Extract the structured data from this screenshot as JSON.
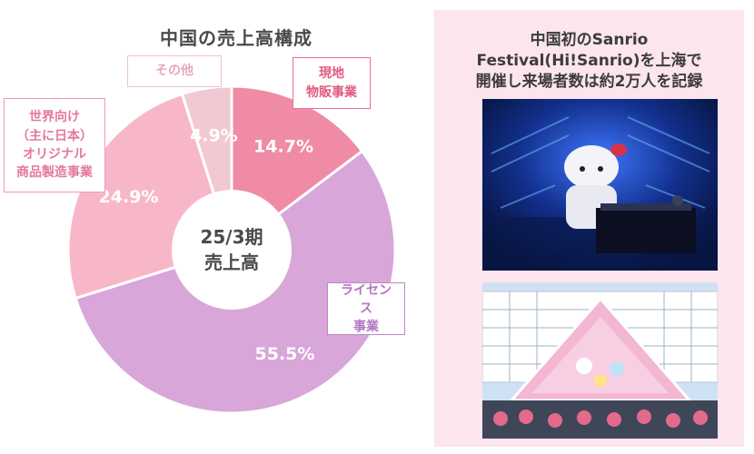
{
  "chart_data": {
    "type": "pie",
    "donut": true,
    "title": "中国の売上高構成",
    "center_label": [
      "25/3期",
      "売上高"
    ],
    "slices": [
      {
        "label": "現地物販事業",
        "label_lines": [
          "現地",
          "物販事業"
        ],
        "value": 14.7,
        "display": "14.7%",
        "color": "#f08ba5"
      },
      {
        "label": "ライセンス事業",
        "label_lines": [
          "ライセンス",
          "事業"
        ],
        "value": 55.5,
        "display": "55.5%",
        "color": "#d9a6d9"
      },
      {
        "label": "世界向け（主に日本）オリジナル商品製造事業",
        "label_lines": [
          "世界向け",
          "（主に日本）",
          "オリジナル",
          "商品製造事業"
        ],
        "value": 24.9,
        "display": "24.9%",
        "color": "#f8b7c8"
      },
      {
        "label": "その他",
        "label_lines": [
          "その他"
        ],
        "value": 4.9,
        "display": "4.9%",
        "color": "#f1c9d3"
      }
    ]
  },
  "panel": {
    "title_lines": [
      "中国初のSanrio",
      "Festival(Hi!Sanrio)を上海で",
      "開催し来場者数は約2万人を記録"
    ],
    "photo_dj_icon": "dj-stage-photo",
    "photo_venue_icon": "pyramid-venue-photo"
  }
}
